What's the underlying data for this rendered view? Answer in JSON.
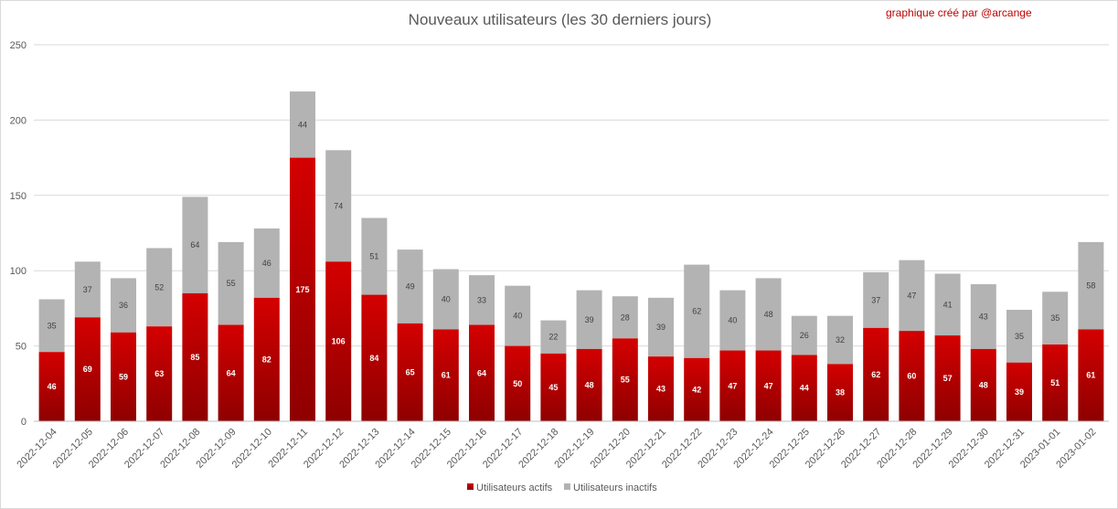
{
  "chart_data": {
    "type": "bar",
    "stacked": true,
    "title": "Nouveaux utilisateurs  (les 30 derniers  jours)",
    "credit": "graphique créé par @arcange",
    "xlabel": "",
    "ylabel": "",
    "ylim": [
      0,
      250
    ],
    "yticks": [
      0,
      50,
      100,
      150,
      200,
      250
    ],
    "grid": true,
    "legend_position": "bottom",
    "categories": [
      "2022-12-04",
      "2022-12-05",
      "2022-12-06",
      "2022-12-07",
      "2022-12-08",
      "2022-12-09",
      "2022-12-10",
      "2022-12-11",
      "2022-12-12",
      "2022-12-13",
      "2022-12-14",
      "2022-12-15",
      "2022-12-16",
      "2022-12-17",
      "2022-12-18",
      "2022-12-19",
      "2022-12-20",
      "2022-12-21",
      "2022-12-22",
      "2022-12-23",
      "2022-12-24",
      "2022-12-25",
      "2022-12-26",
      "2022-12-27",
      "2022-12-28",
      "2022-12-29",
      "2022-12-30",
      "2022-12-31",
      "2023-01-01",
      "2023-01-02"
    ],
    "series": [
      {
        "name": "Utilisateurs actifs",
        "color": "#c00000",
        "values": [
          46,
          69,
          59,
          63,
          85,
          64,
          82,
          175,
          106,
          84,
          65,
          61,
          64,
          50,
          45,
          48,
          55,
          43,
          42,
          47,
          47,
          44,
          38,
          62,
          60,
          57,
          48,
          39,
          51,
          61
        ]
      },
      {
        "name": "Utilisateurs inactifs",
        "color": "#b3b3b3",
        "values": [
          35,
          37,
          36,
          52,
          64,
          55,
          46,
          44,
          74,
          51,
          49,
          40,
          33,
          40,
          22,
          39,
          28,
          39,
          62,
          40,
          48,
          26,
          32,
          37,
          47,
          41,
          43,
          35,
          35,
          58
        ]
      }
    ]
  }
}
